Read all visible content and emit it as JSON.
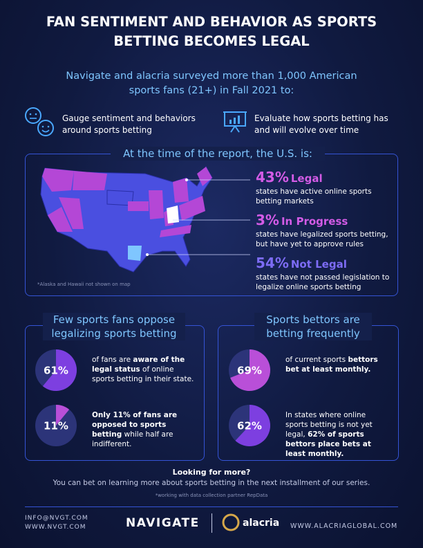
{
  "header": {
    "title": "FAN SENTIMENT AND BEHAVIOR AS SPORTS BETTING BECOMES LEGAL"
  },
  "intro": "Navigate and alacria surveyed more than 1,000 American sports fans (21+) in Fall 2021 to:",
  "goals": [
    "Gauge sentiment and behaviors around sports betting",
    "Evaluate how sports betting has and will evolve over time"
  ],
  "status": {
    "heading": "At the time of the report, the U.S. is:",
    "map_note": "*Alaska and Hawaii not shown on map",
    "items": [
      {
        "label": "43%",
        "name": "Legal",
        "description": "states have active online sports betting markets",
        "color": "#d35be6"
      },
      {
        "label": "3%",
        "name": "In Progress",
        "description": "states have legalized sports betting, but have yet to approve rules",
        "color": "#d35be6"
      },
      {
        "label": "54%",
        "name": "Not Legal",
        "description": "states have not passed legislation to legalize online sports betting",
        "color": "#7d6cf5"
      }
    ]
  },
  "panels": [
    {
      "heading": "Few sports fans oppose legalizing sports betting",
      "stats": [
        {
          "value": 61,
          "label": "61%",
          "color": "#7d3fe0",
          "text": [
            {
              "t": "of fans are "
            },
            {
              "t": "aware of the legal status",
              "bold": true
            },
            {
              "t": " of online sports betting in their state."
            }
          ]
        },
        {
          "value": 11,
          "label": "11%",
          "color": "#b94fd8",
          "text": [
            {
              "t": "Only 11% of fans are opposed to sports betting",
              "bold": true
            },
            {
              "t": " while half are indifferent."
            }
          ]
        }
      ]
    },
    {
      "heading": "Sports bettors are betting frequently",
      "stats": [
        {
          "value": 69,
          "label": "69%",
          "color": "#b94fd8",
          "text": [
            {
              "t": "of current sports "
            },
            {
              "t": "bettors bet at least monthly.",
              "bold": true
            }
          ]
        },
        {
          "value": 62,
          "label": "62%",
          "color": "#7d3fe0",
          "text": [
            {
              "t": "In states where online sports betting is not yet legal, "
            },
            {
              "t": "62% of sports bettors place bets at least monthly.",
              "bold": true
            }
          ]
        }
      ]
    }
  ],
  "footer": {
    "heading": "Looking for more?",
    "text": "You can bet on learning more about sports betting in the next installment of our series.",
    "note": "*working with data collection partner RepData",
    "contacts": [
      "INFO@NVGT.COM",
      "WWW.NVGT.COM"
    ],
    "logos": [
      "NAVIGATE",
      "alacria"
    ],
    "website": "WWW.ALACRIAGLOBAL.COM"
  }
}
